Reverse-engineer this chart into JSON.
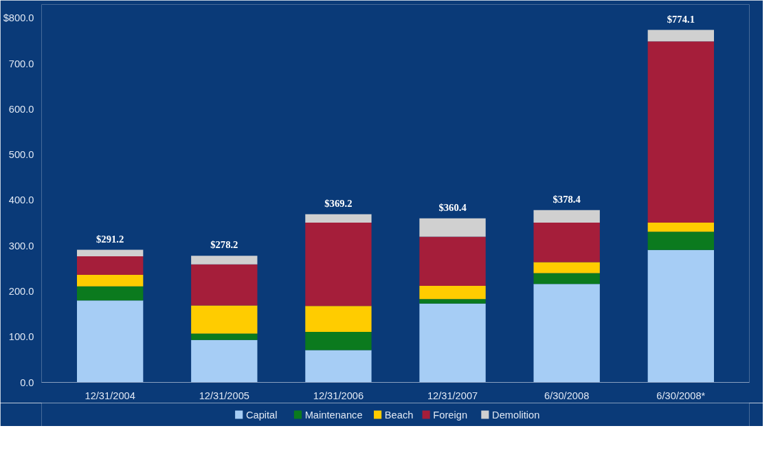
{
  "chart_data": {
    "type": "bar",
    "stacked": true,
    "categories": [
      "12/31/2004",
      "12/31/2005",
      "12/31/2006",
      "12/31/2007",
      "6/30/2008",
      "6/30/2008*"
    ],
    "series": [
      {
        "name": "Capital",
        "color": "#a6cdf5",
        "values": [
          180,
          93,
          71,
          173,
          216,
          291
        ]
      },
      {
        "name": "Maintenance",
        "color": "#0b7a1e",
        "values": [
          31,
          14,
          40,
          10,
          24,
          40
        ]
      },
      {
        "name": "Beach",
        "color": "#ffcc00",
        "values": [
          25,
          62,
          57,
          29,
          24,
          20
        ]
      },
      {
        "name": "Foreign",
        "color": "#a51e3a",
        "values": [
          41,
          90,
          183,
          108,
          87,
          398
        ]
      },
      {
        "name": "Demolition",
        "color": "#d0d0d0",
        "values": [
          14.2,
          19.2,
          18.2,
          40.4,
          27.4,
          25.1
        ]
      }
    ],
    "totals": [
      "$291.2",
      "$278.2",
      "$369.2",
      "$360.4",
      "$378.4",
      "$774.1"
    ],
    "ylim": [
      0,
      830
    ],
    "yticks": [
      {
        "value": 0,
        "label": "0.0"
      },
      {
        "value": 100,
        "label": "100.0"
      },
      {
        "value": 200,
        "label": "200.0"
      },
      {
        "value": 300,
        "label": "300.0"
      },
      {
        "value": 400,
        "label": "400.0"
      },
      {
        "value": 500,
        "label": "500.0"
      },
      {
        "value": 600,
        "label": "600.0"
      },
      {
        "value": 700,
        "label": "700.0"
      },
      {
        "value": 800,
        "label": "$800.0"
      }
    ],
    "grid": false,
    "legend": "bottom"
  }
}
